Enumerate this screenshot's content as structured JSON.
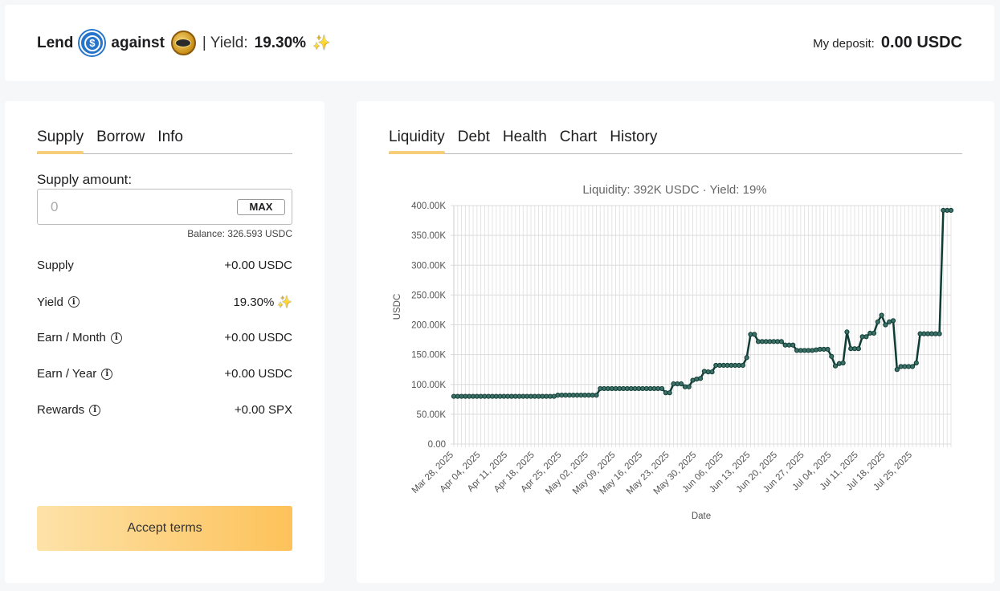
{
  "header": {
    "lend": "Lend",
    "against": "against",
    "yield_label": "| Yield:",
    "yield_value": "19.30%",
    "deposit_label": "My deposit:",
    "deposit_value": "0.00 USDC",
    "icons": [
      "usdc-coin-icon",
      "spx-coin-icon",
      "sparkle-icon"
    ]
  },
  "left": {
    "tabs": [
      "Supply",
      "Borrow",
      "Info"
    ],
    "active_tab": "Supply",
    "supply_amount_label": "Supply amount:",
    "amount_placeholder": "0",
    "max_label": "MAX",
    "balance": "Balance: 326.593 USDC",
    "rows": [
      {
        "label": "Supply",
        "value": "+0.00 USDC",
        "info": false
      },
      {
        "label": "Yield",
        "value": "19.30%",
        "info": true
      },
      {
        "label": "Earn / Month",
        "value": "+0.00 USDC",
        "info": true
      },
      {
        "label": "Earn / Year",
        "value": "+0.00 USDC",
        "info": true
      },
      {
        "label": "Rewards",
        "value": "+0.00 SPX",
        "info": true
      }
    ],
    "accept_label": "Accept terms"
  },
  "right": {
    "tabs": [
      "Liquidity",
      "Debt",
      "Health",
      "Chart",
      "History"
    ],
    "active_tab": "Liquidity"
  },
  "chart_data": {
    "type": "line",
    "title": "Liquidity: 392K USDC · Yield: 19%",
    "xlabel": "Date",
    "ylabel": "USDC",
    "ylim": [
      0,
      400000
    ],
    "yticks": [
      "0.00",
      "50.00K",
      "100.00K",
      "150.00K",
      "200.00K",
      "250.00K",
      "300.00K",
      "350.00K",
      "400.00K"
    ],
    "xticks": [
      "Mar 28, 2025",
      "Apr 04, 2025",
      "Apr 11, 2025",
      "Apr 18, 2025",
      "Apr 25, 2025",
      "May 02, 2025",
      "May 09, 2025",
      "May 16, 2025",
      "May 23, 2025",
      "May 30, 2025",
      "Jun 06, 2025",
      "Jun 13, 2025",
      "Jun 20, 2025",
      "Jun 27, 2025",
      "Jul 04, 2025",
      "Jul 11, 2025",
      "Jul 18, 2025",
      "Jul 25, 2025"
    ],
    "grid": true,
    "line_color": "#0f3d35",
    "series": [
      {
        "x_start": "Mar 28, 2025",
        "values": [
          80000,
          80000,
          80000,
          80000,
          80000,
          80000,
          80000,
          80000,
          80000,
          80000,
          80000,
          80000,
          80000,
          80000,
          80000,
          80000,
          80000,
          80000,
          80000,
          80000,
          80000,
          80000,
          80000,
          80000,
          80000,
          80000,
          80000,
          82000,
          82000,
          82000,
          82000,
          82000,
          82000,
          82000,
          82000,
          82000,
          82000,
          82000,
          93000,
          93000,
          93000,
          93000,
          93000,
          93000,
          93000,
          93000,
          93000,
          93000,
          93000,
          93000,
          93000,
          93000,
          93000,
          93000,
          93000,
          86000,
          86000,
          101000,
          101000,
          101000,
          96000,
          96000,
          107000,
          109000,
          110000,
          122000,
          121000,
          121000,
          132000,
          132000,
          132000,
          132000,
          132000,
          132000,
          132000,
          132000,
          145000,
          184000,
          184000,
          172000,
          172000,
          172000,
          172000,
          172000,
          172000,
          172000,
          166000,
          166000,
          166000,
          157000,
          157000,
          157000,
          157000,
          157000,
          158000,
          159000,
          159000,
          159000,
          147000,
          131000,
          135000,
          136000,
          188000,
          160000,
          160000,
          160000,
          180000,
          180000,
          186000,
          186000,
          205000,
          216000,
          200000,
          205000,
          207000,
          125000,
          130000,
          130000,
          130000,
          130000,
          136000,
          185000,
          185000,
          185000,
          185000,
          185000,
          185000,
          392000,
          392000,
          392000
        ]
      }
    ]
  }
}
